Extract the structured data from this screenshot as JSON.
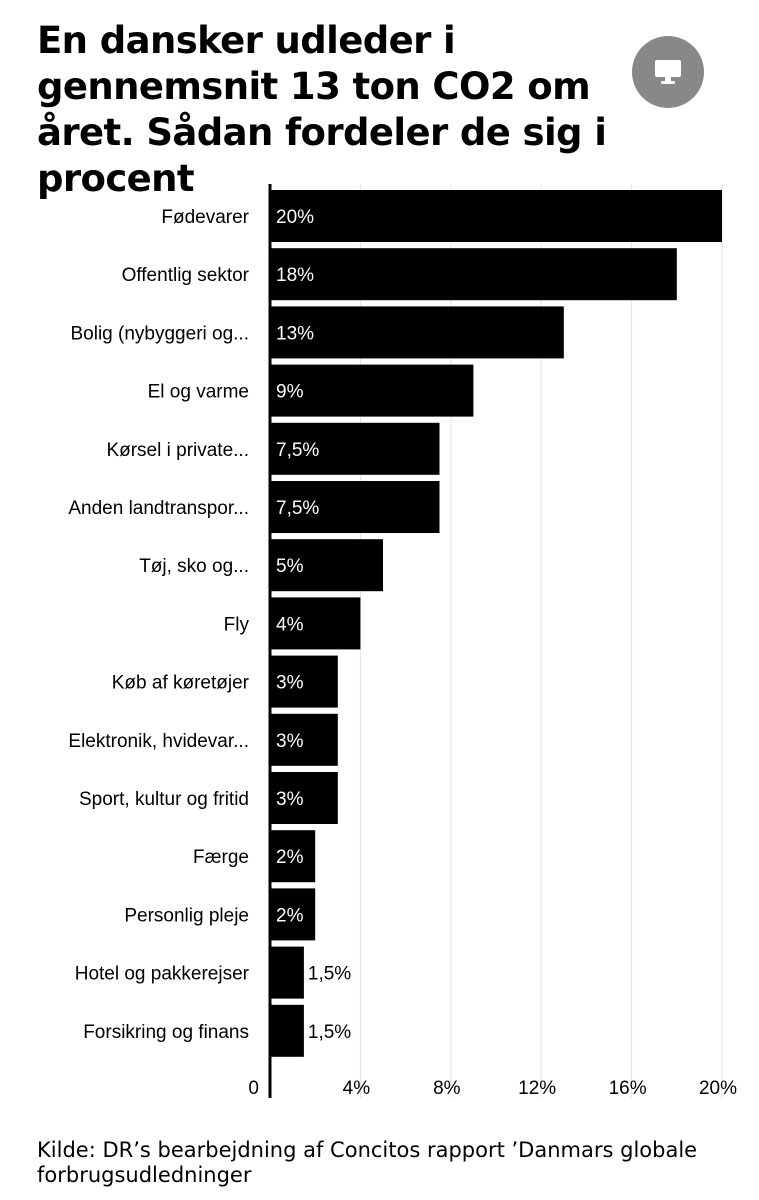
{
  "title": "En dansker udleder i gennemsnit 13 ton CO2 om året. Sådan fordeler de sig i procent",
  "source": "Kilde: DR’s bearbejdning af Concitos rapport ’Danmars globale forbrugsudledninger",
  "screen_button_icon": "monitor-icon",
  "colors": {
    "bar": "#000000",
    "grid": "#e3e3e3",
    "button": "#787878"
  },
  "chart_data": {
    "type": "bar",
    "orientation": "horizontal",
    "title": "En dansker udleder i gennemsnit 13 ton CO2 om året. Sådan fordeler de sig i procent",
    "categories": [
      "Fødevarer",
      "Offentlig sektor",
      "Bolig (nybyggeri og...",
      "El og varme",
      "Kørsel i private...",
      "Anden landtranspor...",
      "Tøj, sko og...",
      "Fly",
      "Køb af køretøjer",
      "Elektronik, hvidevar...",
      "Sport, kultur og fritid",
      "Færge",
      "Personlig pleje",
      "Hotel og pakkerejser",
      "Forsikring og finans"
    ],
    "values": [
      20,
      18,
      13,
      9,
      7.5,
      7.5,
      5,
      4,
      3,
      3,
      3,
      2,
      2,
      1.5,
      1.5
    ],
    "value_labels": [
      "20%",
      "18%",
      "13%",
      "9%",
      "7,5%",
      "7,5%",
      "5%",
      "4%",
      "3%",
      "3%",
      "3%",
      "2%",
      "2%",
      "1,5%",
      "1,5%"
    ],
    "xticks": [
      0,
      4,
      8,
      12,
      16,
      20
    ],
    "xtick_labels": [
      "0",
      "4%",
      "8%",
      "12%",
      "16%",
      "20%"
    ],
    "xlim": [
      0,
      20
    ],
    "grid": true,
    "xlabel": "",
    "ylabel": ""
  }
}
